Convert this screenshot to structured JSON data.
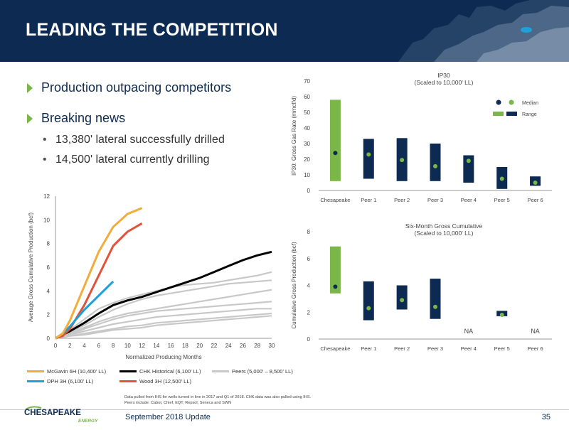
{
  "header": {
    "title": "LEADING THE COMPETITION"
  },
  "bullets": [
    {
      "text": "Production outpacing competitors"
    },
    {
      "text": "Breaking news"
    }
  ],
  "sub_bullets": [
    {
      "text": "13,380' lateral successfully drilled"
    },
    {
      "text": "14,500' lateral currently drilling"
    }
  ],
  "colors": {
    "navy": "#0d2b52",
    "green": "#7ab648",
    "mcgavin": "#f0ad3c",
    "dph": "#1ea0d8",
    "wood": "#e0533a",
    "chk": "#000000",
    "peers": "#c8c8c8"
  },
  "chart_data": [
    {
      "type": "line",
      "xlabel": "Normalized Producing Months",
      "ylabel": "Average Gross Cumulative Production (bcf)",
      "xlim": [
        0,
        30
      ],
      "ylim": [
        0,
        12
      ],
      "xticks": [
        0,
        2,
        4,
        6,
        8,
        10,
        12,
        14,
        16,
        18,
        20,
        22,
        24,
        26,
        28,
        30
      ],
      "yticks": [
        0,
        2,
        4,
        6,
        8,
        10,
        12
      ],
      "grid": false,
      "legend": "bottom",
      "series": [
        {
          "name": "McGavin 6H (10,400' LL)",
          "color": "#f0ad3c",
          "x": [
            0,
            1,
            2,
            4,
            6,
            8,
            10,
            12
          ],
          "y": [
            0,
            0.4,
            1.5,
            4.4,
            7.3,
            9.4,
            10.5,
            11.0
          ]
        },
        {
          "name": "CHK Historical (6,100' LL)",
          "color": "#000000",
          "x": [
            0,
            1,
            2,
            4,
            6,
            8,
            10,
            12,
            14,
            16,
            18,
            20,
            22,
            24,
            26,
            28,
            30
          ],
          "y": [
            0,
            0.3,
            0.6,
            1.3,
            2.1,
            2.8,
            3.2,
            3.5,
            3.9,
            4.3,
            4.7,
            5.1,
            5.6,
            6.1,
            6.6,
            7.0,
            7.3
          ]
        },
        {
          "name": "Peers (5,000' – 8,500' LL)",
          "color": "#c8c8c8",
          "x": [],
          "y": []
        },
        {
          "name": "DPH 3H (6,100' LL)",
          "color": "#1ea0d8",
          "x": [
            0,
            1,
            2,
            4,
            6,
            8
          ],
          "y": [
            0,
            0.4,
            1.0,
            2.4,
            3.6,
            4.8
          ]
        },
        {
          "name": "Wood 3H (12,500' LL)",
          "color": "#e0533a",
          "x": [
            0,
            1,
            2,
            4,
            6,
            8,
            10,
            12
          ],
          "y": [
            0,
            0.2,
            0.8,
            2.8,
            5.3,
            7.8,
            9.0,
            9.7
          ]
        }
      ],
      "peer_lines": [
        {
          "x": [
            0,
            2,
            4,
            6,
            8,
            10,
            12,
            14,
            16,
            18,
            20,
            22,
            24,
            26,
            28,
            30
          ],
          "y": [
            0,
            0.7,
            1.6,
            2.5,
            3.0,
            3.4,
            3.7,
            4.0,
            4.3,
            4.5,
            4.6,
            4.7,
            4.9,
            5.1,
            5.3,
            5.6
          ]
        },
        {
          "x": [
            0,
            2,
            4,
            6,
            8,
            10,
            12,
            14,
            16,
            18,
            20,
            22,
            24,
            26,
            28,
            30
          ],
          "y": [
            0,
            0.5,
            1.1,
            1.8,
            2.4,
            2.9,
            3.3,
            3.6,
            3.8,
            4.0,
            4.2,
            4.4,
            4.6,
            4.7,
            4.8,
            4.9
          ]
        },
        {
          "x": [
            0,
            2,
            4,
            6,
            8,
            10,
            12,
            14,
            16,
            18,
            20,
            22,
            24,
            26,
            28,
            30
          ],
          "y": [
            0,
            0.4,
            0.9,
            1.4,
            1.8,
            2.1,
            2.3,
            2.5,
            2.7,
            2.9,
            3.1,
            3.3,
            3.5,
            3.7,
            3.9,
            4.1
          ]
        },
        {
          "x": [
            0,
            2,
            4,
            6,
            8,
            10,
            12,
            14,
            16,
            18,
            20,
            22,
            24,
            26,
            28,
            30
          ],
          "y": [
            0,
            0.3,
            0.8,
            1.2,
            1.6,
            1.9,
            2.1,
            2.3,
            2.4,
            2.5,
            2.6,
            2.7,
            2.8,
            2.9,
            3.0,
            3.1
          ]
        },
        {
          "x": [
            0,
            2,
            4,
            6,
            8,
            10,
            12,
            14,
            16,
            18,
            20,
            22,
            24,
            26,
            28,
            30
          ],
          "y": [
            0,
            0.3,
            0.6,
            0.9,
            1.2,
            1.4,
            1.6,
            1.8,
            1.9,
            2.0,
            2.1,
            2.2,
            2.3,
            2.4,
            2.5,
            2.5
          ]
        },
        {
          "x": [
            0,
            2,
            4,
            6,
            8,
            10,
            12,
            14,
            16,
            18,
            20,
            22,
            24,
            26,
            28,
            30
          ],
          "y": [
            0,
            0.2,
            0.4,
            0.6,
            0.8,
            1.0,
            1.1,
            1.3,
            1.4,
            1.5,
            1.6,
            1.7,
            1.8,
            1.9,
            2.0,
            2.1
          ]
        },
        {
          "x": [
            0,
            2,
            4,
            6,
            8,
            10,
            12,
            14,
            16,
            18,
            20,
            22,
            24,
            26,
            28,
            30
          ],
          "y": [
            0,
            0.2,
            0.3,
            0.5,
            0.7,
            0.8,
            0.9,
            1.1,
            1.2,
            1.3,
            1.4,
            1.5,
            1.6,
            1.7,
            1.8,
            1.9
          ]
        }
      ]
    },
    {
      "type": "bar",
      "title": "IP30",
      "subtitle": "(Scaled to 10,000' LL)",
      "ylabel": "IP30: Gross Gas Rate (mmcf/d)",
      "ylim": [
        0,
        70
      ],
      "yticks": [
        0,
        10,
        20,
        30,
        40,
        50,
        60,
        70
      ],
      "categories": [
        "Chesapeake",
        "Peer 1",
        "Peer 2",
        "Peer 3",
        "Peer 4",
        "Peer 5",
        "Peer 6"
      ],
      "range_low": [
        6,
        7.5,
        6,
        6,
        5,
        1,
        3
      ],
      "range_high": [
        58,
        33,
        33.5,
        30,
        22.5,
        15,
        9
      ],
      "median": [
        24,
        23,
        19.5,
        15.5,
        19,
        7.5,
        5
      ],
      "legend": "top-right",
      "legend_median": "Median",
      "legend_range": "Range"
    },
    {
      "type": "bar",
      "title": "Six-Month Gross Cumulative",
      "subtitle": "(Scaled to 10,000' LL)",
      "ylabel": "Cumulative Gross Production (bcf)",
      "ylim": [
        0,
        8
      ],
      "yticks": [
        0,
        2,
        4,
        6,
        8
      ],
      "categories": [
        "Chesapeake",
        "Peer 1",
        "Peer 2",
        "Peer 3",
        "Peer 4",
        "Peer 5",
        "Peer 6"
      ],
      "range_low": [
        3.4,
        1.4,
        2.2,
        1.5,
        null,
        1.7,
        null
      ],
      "range_high": [
        6.9,
        4.3,
        4.0,
        4.5,
        null,
        2.1,
        null
      ],
      "median": [
        3.9,
        2.3,
        2.9,
        2.4,
        null,
        1.8,
        null
      ],
      "na_labels": [
        "",
        "",
        "",
        "",
        "NA",
        "",
        "NA"
      ]
    }
  ],
  "footnote": {
    "line1": "Data pulled from IHS for wells turned in line in 2017 and Q1 of 2018. CHK data was also pulled using IHS.",
    "line2": "Peers include: Cabot, Chief, EQT, Repsol, Seneca and SWN"
  },
  "footer": {
    "text": "September 2018 Update",
    "page": "35",
    "logo_top": "CHESAPEAKE",
    "logo_bottom": "ENERGY"
  }
}
